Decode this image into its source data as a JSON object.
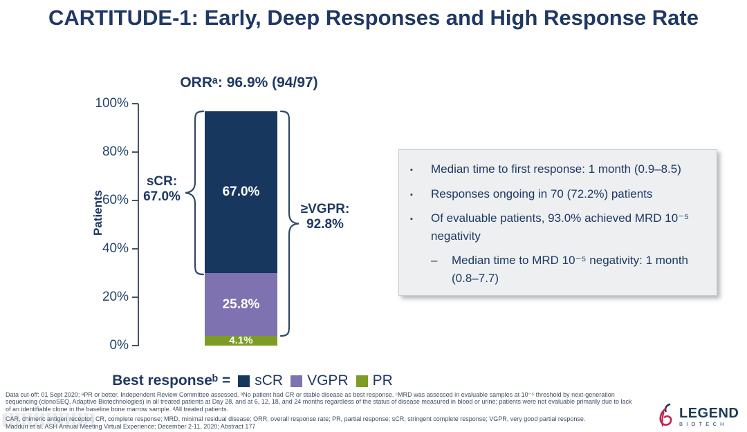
{
  "slide_title": "CARTITUDE-1: Early, Deep Responses and High Response Rate",
  "chart_data": {
    "type": "bar",
    "stacked": true,
    "title": "ORRᵃ: 96.9% (94/97)",
    "ylabel": "Patients",
    "ylim": [
      0,
      100
    ],
    "yticks": [
      "100%",
      "80%",
      "60%",
      "40%",
      "20%",
      "0%"
    ],
    "gridlines": false,
    "legend_position": "bottom",
    "categories": [
      "Best response"
    ],
    "series": [
      {
        "name": "sCR",
        "values": [
          67.0
        ],
        "data_label": "67.0%",
        "color": "#17375E"
      },
      {
        "name": "VGPR",
        "values": [
          25.8
        ],
        "data_label": "25.8%",
        "color": "#7E72B0"
      },
      {
        "name": "PR",
        "values": [
          4.1
        ],
        "data_label": "4.1%",
        "color": "#7D9C26"
      }
    ],
    "annotations": {
      "scr_bracket_label": "sCR:\n67.0%",
      "vgpr_bracket_label": "≥VGPR:\n92.8%"
    },
    "legend": {
      "prefix": "Best responseᵇ =",
      "entries": [
        "sCR",
        "VGPR",
        "PR"
      ]
    }
  },
  "highlights": {
    "bullet_char": "▪",
    "dash_char": "–",
    "bullets": [
      {
        "level": 1,
        "text": "Median time to first response: 1 month (0.9–8.5)"
      },
      {
        "level": 1,
        "text": "Responses ongoing in 70 (72.2%) patients"
      },
      {
        "level": 1,
        "text": "Of evaluable patients, 93.0% achieved MRD 10⁻⁵ negativity"
      },
      {
        "level": 2,
        "text": "Median time to MRD 10⁻⁵ negativity: 1 month (0.8–7.7)"
      }
    ]
  },
  "footnotes": {
    "line1": "Data cut-off: 01 Sept 2020; ᵃPR or better, Independent Review Committee assessed. ᵇNo patient had CR or stable disease as best response. ᶜMRD was assessed in evaluable samples at 10⁻⁵ threshold by next-generation",
    "line2": "sequencing (clonoSEQ, Adaptive Biotechnologies) in all treated patients at Day 28, and at 6, 12, 18, and 24 months regardless of the status of disease measured in blood or urine; patients were not evaluable primarily due to lack",
    "line3": "of an identifiable clone in the baseline bone marrow sample. ᵈAll treated patients.",
    "abbreviations": "CAR, chimeric antigen receptor; CR, complete response; MRD, minimal residual disease; ORR, overall response rate; PR, partial response; sCR, stringent complete response; VGPR, very good partial response.",
    "citation": "Madduri et al. ASH Annual Meeting Virtual Experience; December 2-11, 2020; Abstract 177"
  },
  "logo": {
    "brand": "LEGEND",
    "sub_brand": "BIOTECH"
  }
}
